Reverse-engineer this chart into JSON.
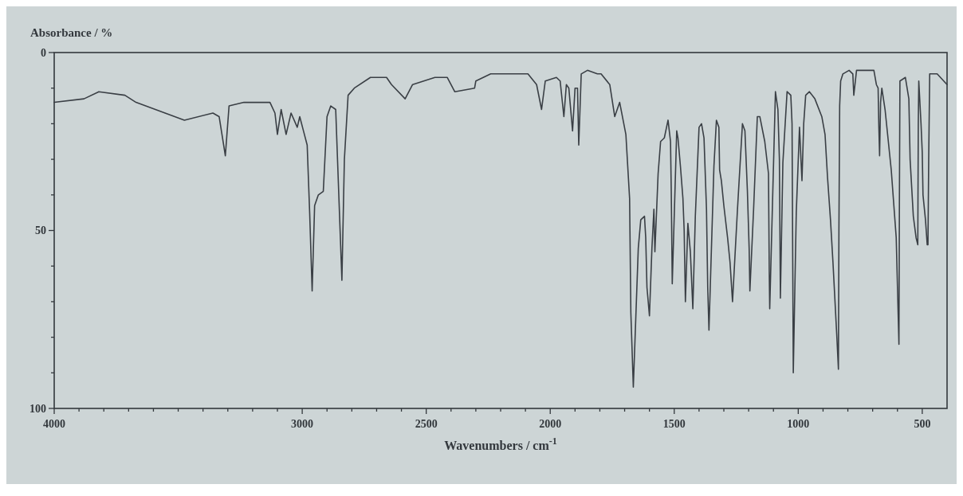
{
  "chart_data": {
    "type": "line",
    "ylabel": "Absorbance / %",
    "xlabel": "Wavenumbers / cm$^{-1}$",
    "xlim": [
      4000,
      400
    ],
    "xticks": [
      4000,
      {
        "value": 3900,
        "label": null
      },
      {
        "value": 3800,
        "label": null
      },
      {
        "value": 3700,
        "label": null
      },
      {
        "value": 3600,
        "label": null
      },
      {
        "value": 3500,
        "label": null
      },
      {
        "value": 3400,
        "label": null
      },
      {
        "value": 3300,
        "label": null
      },
      {
        "value": 3200,
        "label": null
      },
      {
        "value": 3100,
        "label": null
      },
      3000,
      {
        "value": 2900,
        "label": null
      },
      {
        "value": 2800,
        "label": null
      },
      {
        "value": 2700,
        "label": null
      },
      {
        "value": 2600,
        "label": null
      },
      2500,
      {
        "value": 2400,
        "label": null
      },
      {
        "value": 2300,
        "label": null
      },
      {
        "value": 2200,
        "label": null
      },
      {
        "value": 2100,
        "label": null
      },
      2000,
      {
        "value": 1900,
        "label": null
      },
      {
        "value": 1800,
        "label": null
      },
      {
        "value": 1700,
        "label": null
      },
      {
        "value": 1600,
        "label": null
      },
      1500,
      {
        "value": 1400,
        "label": null
      },
      {
        "value": 1300,
        "label": null
      },
      {
        "value": 1200,
        "label": null
      },
      {
        "value": 1100,
        "label": null
      },
      1000,
      {
        "value": 900,
        "label": null
      },
      {
        "value": 800,
        "label": null
      },
      {
        "value": 700,
        "label": null
      },
      {
        "value": 600,
        "label": null
      },
      500
    ],
    "ylim": [
      100,
      0
    ],
    "yticks": [
      0,
      {
        "value": 10,
        "label": null
      },
      {
        "value": 20,
        "label": null
      },
      {
        "value": 30,
        "label": null
      },
      {
        "value": 40,
        "label": null
      },
      50,
      {
        "value": 60,
        "label": null
      },
      {
        "value": 70,
        "label": null
      },
      {
        "value": 80,
        "label": null
      },
      {
        "value": 90,
        "label": null
      },
      100
    ],
    "x": [
      4000,
      3880,
      3820,
      3715,
      3670,
      3475,
      3360,
      3335,
      3310,
      3295,
      3235,
      3130,
      3110,
      3100,
      3085,
      3065,
      3045,
      3020,
      3010,
      2995,
      2980,
      2970,
      2960,
      2950,
      2935,
      2915,
      2900,
      2885,
      2865,
      2840,
      2830,
      2815,
      2790,
      2725,
      2660,
      2640,
      2585,
      2555,
      2465,
      2415,
      2385,
      2305,
      2300,
      2240,
      2150,
      2090,
      2055,
      2035,
      2020,
      1975,
      1960,
      1945,
      1935,
      1925,
      1910,
      1900,
      1890,
      1885,
      1875,
      1850,
      1810,
      1795,
      1760,
      1740,
      1720,
      1695,
      1680,
      1675,
      1665,
      1645,
      1635,
      1620,
      1615,
      1610,
      1600,
      1590,
      1582,
      1578,
      1565,
      1555,
      1540,
      1525,
      1515,
      1512,
      1508,
      1490,
      1485,
      1475,
      1465,
      1460,
      1455,
      1445,
      1435,
      1425,
      1415,
      1400,
      1390,
      1380,
      1370,
      1365,
      1360,
      1350,
      1340,
      1330,
      1320,
      1317,
      1310,
      1300,
      1285,
      1275,
      1265,
      1245,
      1225,
      1215,
      1205,
      1198,
      1195,
      1180,
      1165,
      1155,
      1135,
      1120,
      1117,
      1115,
      1092,
      1082,
      1076,
      1072,
      1062,
      1045,
      1030,
      1025,
      1020,
      1008,
      995,
      985,
      978,
      970,
      955,
      933,
      905,
      892,
      882,
      870,
      860,
      845,
      838,
      836,
      833,
      829,
      820,
      795,
      780,
      776,
      765,
      740,
      695,
      685,
      678,
      675,
      672,
      668,
      663,
      650,
      625,
      605,
      597,
      594,
      592,
      590,
      568,
      554,
      549,
      536,
      525,
      518,
      516,
      514,
      505,
      500,
      497,
      487,
      480,
      477,
      474,
      470,
      440,
      400
    ],
    "series": [
      {
        "color": "#3a3f45",
        "values": [
          14,
          13,
          11,
          12,
          14,
          19,
          17,
          18,
          29,
          15,
          14,
          14,
          17,
          23,
          16,
          23,
          17,
          21,
          18,
          22,
          26,
          45,
          67,
          43,
          40,
          39,
          18,
          15,
          16,
          64,
          30,
          12,
          10,
          7,
          7,
          9,
          13,
          9,
          7,
          7,
          11,
          10,
          8,
          6,
          6,
          6,
          9,
          16,
          8,
          7,
          8,
          18,
          9,
          10,
          22,
          10,
          10,
          26,
          6,
          5,
          6,
          6,
          9,
          18,
          14,
          23,
          41,
          73,
          94,
          55,
          47,
          46,
          52,
          66,
          74,
          55,
          44,
          56,
          34,
          25,
          24,
          19,
          25,
          39,
          65,
          22,
          24,
          32,
          41,
          50,
          70,
          48,
          56,
          72,
          46,
          21,
          20,
          24,
          44,
          66,
          78,
          55,
          32,
          19,
          21,
          33,
          36,
          43,
          52,
          59,
          70,
          44,
          20,
          22,
          39,
          55,
          67,
          44,
          18,
          18,
          25,
          34,
          61,
          72,
          11,
          16,
          30,
          69,
          31,
          11,
          12,
          20,
          90,
          45,
          21,
          36,
          20,
          12,
          11,
          13,
          18,
          23,
          35,
          47,
          59,
          79,
          89,
          50,
          15,
          8,
          6,
          5,
          6,
          12,
          5,
          5,
          5,
          9,
          10,
          21,
          29,
          14,
          10,
          16,
          33,
          52,
          74,
          82,
          40,
          8,
          7,
          13,
          30,
          46,
          52,
          54,
          20,
          8,
          20,
          28,
          40,
          47,
          54,
          54,
          30,
          6,
          6,
          9
        ]
      }
    ]
  }
}
